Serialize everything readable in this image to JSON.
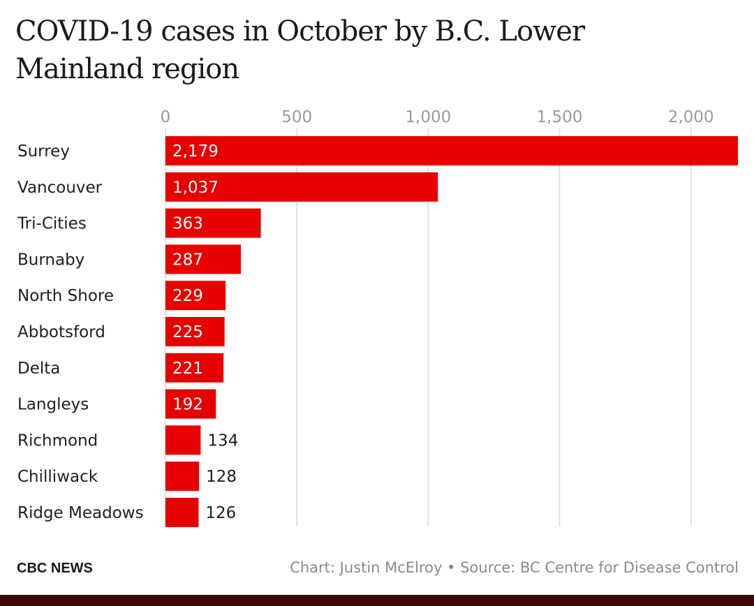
{
  "title": "COVID-19 cases in October by B.C. Lower Mainland region",
  "footer": {
    "brand": "CBC NEWS",
    "credit": "Chart: Justin McElroy • Source: BC Centre for Disease Control"
  },
  "colors": {
    "bar": "#e60000",
    "grid": "#d9d9d9",
    "bottom_strip": "#3a0a0a"
  },
  "chart_data": {
    "type": "bar",
    "orientation": "horizontal",
    "title": "COVID-19 cases in October by B.C. Lower Mainland region",
    "categories": [
      "Surrey",
      "Vancouver",
      "Tri-Cities",
      "Burnaby",
      "North Shore",
      "Abbotsford",
      "Delta",
      "Langleys",
      "Richmond",
      "Chilliwack",
      "Ridge Meadows"
    ],
    "values": [
      2179,
      1037,
      363,
      287,
      229,
      225,
      221,
      192,
      134,
      128,
      126
    ],
    "value_labels": [
      "2,179",
      "1,037",
      "363",
      "287",
      "229",
      "225",
      "221",
      "192",
      "134",
      "128",
      "126"
    ],
    "xticks": [
      0,
      500,
      1000,
      1500,
      2000
    ],
    "xtick_labels": [
      "0",
      "500",
      "1,000",
      "1,500",
      "2,000"
    ],
    "xlim": [
      0,
      2179
    ],
    "axis_position": "top",
    "grid": true,
    "legend": "none"
  }
}
